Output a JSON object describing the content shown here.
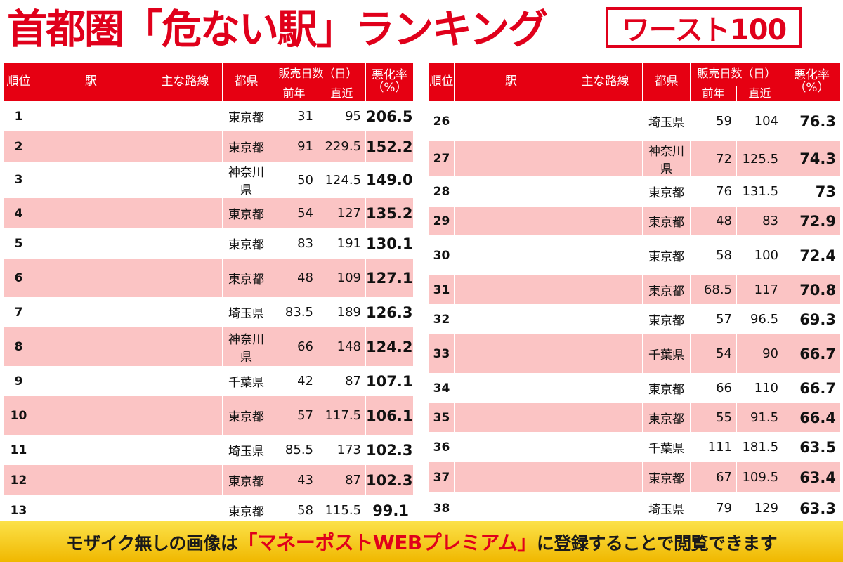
{
  "title": {
    "main": "首都圏「危ない駅」ランキング",
    "badge": "ワースト100"
  },
  "headers": {
    "rank": "順位",
    "station": "駅",
    "line": "主な路線",
    "prefecture": "都県",
    "days": "販売日数（日）",
    "prev": "前年",
    "recent": "直近",
    "rate": "悪化率（%）"
  },
  "left_rows": [
    {
      "rank": "1",
      "pref": "東京都",
      "prev": "31",
      "recent": "95",
      "rate": "206.5"
    },
    {
      "rank": "2",
      "pref": "東京都",
      "prev": "91",
      "recent": "229.5",
      "rate": "152.2"
    },
    {
      "rank": "3",
      "pref": "神奈川県",
      "prev": "50",
      "recent": "124.5",
      "rate": "149.0"
    },
    {
      "rank": "4",
      "pref": "東京都",
      "prev": "54",
      "recent": "127",
      "rate": "135.2"
    },
    {
      "rank": "5",
      "pref": "東京都",
      "prev": "83",
      "recent": "191",
      "rate": "130.1"
    },
    {
      "rank": "6",
      "pref": "東京都",
      "prev": "48",
      "recent": "109",
      "rate": "127.1"
    },
    {
      "rank": "7",
      "pref": "埼玉県",
      "prev": "83.5",
      "recent": "189",
      "rate": "126.3"
    },
    {
      "rank": "8",
      "pref": "神奈川県",
      "prev": "66",
      "recent": "148",
      "rate": "124.2"
    },
    {
      "rank": "9",
      "pref": "千葉県",
      "prev": "42",
      "recent": "87",
      "rate": "107.1"
    },
    {
      "rank": "10",
      "pref": "東京都",
      "prev": "57",
      "recent": "117.5",
      "rate": "106.1"
    },
    {
      "rank": "11",
      "pref": "埼玉県",
      "prev": "85.5",
      "recent": "173",
      "rate": "102.3"
    },
    {
      "rank": "12",
      "pref": "東京都",
      "prev": "43",
      "recent": "87",
      "rate": "102.3"
    },
    {
      "rank": "13",
      "pref": "東京都",
      "prev": "58",
      "recent": "115.5",
      "rate": "99.1"
    }
  ],
  "right_rows": [
    {
      "rank": "26",
      "pref": "埼玉県",
      "prev": "59",
      "recent": "104",
      "rate": "76.3"
    },
    {
      "rank": "27",
      "pref": "神奈川県",
      "prev": "72",
      "recent": "125.5",
      "rate": "74.3"
    },
    {
      "rank": "28",
      "pref": "東京都",
      "prev": "76",
      "recent": "131.5",
      "rate": "73"
    },
    {
      "rank": "29",
      "pref": "東京都",
      "prev": "48",
      "recent": "83",
      "rate": "72.9"
    },
    {
      "rank": "30",
      "pref": "東京都",
      "prev": "58",
      "recent": "100",
      "rate": "72.4"
    },
    {
      "rank": "31",
      "pref": "東京都",
      "prev": "68.5",
      "recent": "117",
      "rate": "70.8"
    },
    {
      "rank": "32",
      "pref": "東京都",
      "prev": "57",
      "recent": "96.5",
      "rate": "69.3"
    },
    {
      "rank": "33",
      "pref": "千葉県",
      "prev": "54",
      "recent": "90",
      "rate": "66.7"
    },
    {
      "rank": "34",
      "pref": "東京都",
      "prev": "66",
      "recent": "110",
      "rate": "66.7"
    },
    {
      "rank": "35",
      "pref": "東京都",
      "prev": "55",
      "recent": "91.5",
      "rate": "66.4"
    },
    {
      "rank": "36",
      "pref": "千葉県",
      "prev": "111",
      "recent": "181.5",
      "rate": "63.5"
    },
    {
      "rank": "37",
      "pref": "東京都",
      "prev": "67",
      "recent": "109.5",
      "rate": "63.4"
    },
    {
      "rank": "38",
      "pref": "埼玉県",
      "prev": "79",
      "recent": "129",
      "rate": "63.3"
    }
  ],
  "banner": {
    "before": "モザイク無しの画像は",
    "highlight": "「マネーポストWEBプレミアム」",
    "after": "に登録することで閲覧できます"
  },
  "colors": {
    "accent_red": "#e60012",
    "pink_row": "#fbc4c4",
    "banner_yellow": "#f5c400"
  }
}
